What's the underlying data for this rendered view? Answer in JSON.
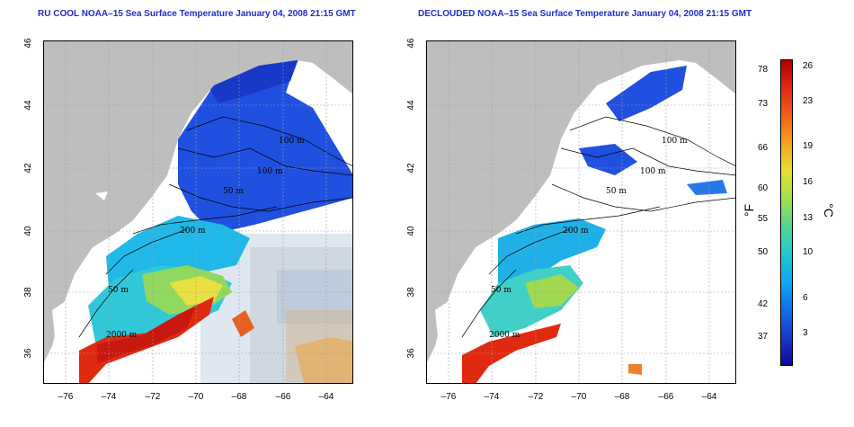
{
  "titles": {
    "left": "RU COOL NOAA–15 Sea Surface Temperature January 04, 2008 21:15 GMT",
    "right": "DECLOUDED NOAA–15 Sea Surface Temperature January 04, 2008 21:15 GMT"
  },
  "axes": {
    "lon_ticks": [
      "–76",
      "–74",
      "–72",
      "–70",
      "–68",
      "–66",
      "–64"
    ],
    "lat_ticks": [
      "36",
      "38",
      "40",
      "42",
      "44",
      "46"
    ]
  },
  "contour_labels": {
    "left": [
      "100 m",
      "100 m",
      "50 m",
      "200 m",
      "50 m",
      "2000 m"
    ],
    "right": [
      "100 m",
      "100 m",
      "50 m",
      "200 m",
      "50 m",
      "2000 m"
    ]
  },
  "colorbar": {
    "fahrenheit_ticks": [
      "78",
      "73",
      "66",
      "60",
      "55",
      "50",
      "42",
      "37"
    ],
    "celsius_ticks": [
      "26",
      "23",
      "19",
      "16",
      "13",
      "10",
      "6",
      "3"
    ],
    "fahrenheit_unit": "°F",
    "celsius_unit": "°C",
    "colors": [
      "#b00000",
      "#e02a10",
      "#f06018",
      "#f8a020",
      "#e8e030",
      "#a0e050",
      "#50d890",
      "#20c8d0",
      "#10a8f0",
      "#1070e8",
      "#1838c8",
      "#100898"
    ]
  },
  "colors": {
    "land": "#bebebe",
    "title": "#1e2ec8",
    "grid": "#a0a0a0"
  }
}
